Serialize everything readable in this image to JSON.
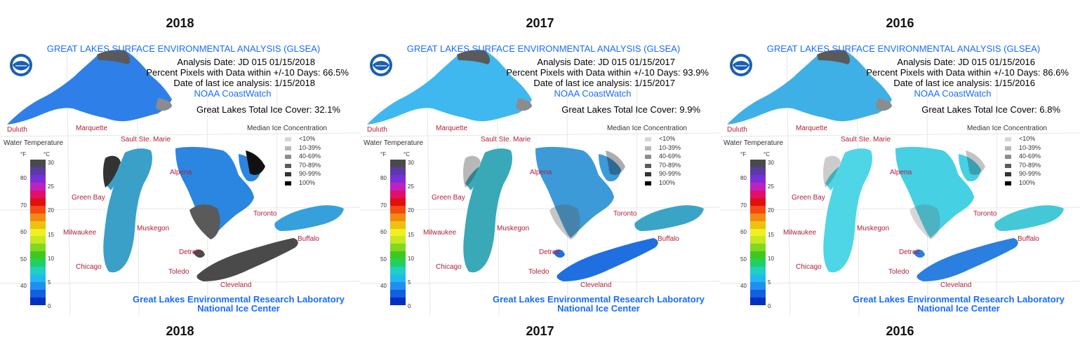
{
  "panels": [
    {
      "year_top": "2018",
      "year_bottom": "2018",
      "title": "GREAT LAKES SURFACE ENVIRONMENTAL ANALYSIS (GLSEA)",
      "analysis_date": "Analysis Date:  JD 015 01/15/2018",
      "percent_pixels": "Percent Pixels with Data within +/-10 Days:  66.5%",
      "last_ice": "Date of last ice analysis: 1/15/2018",
      "coastwatch": "NOAA CoastWatch",
      "total_ice": "Great Lakes Total Ice Cover:  32.1%",
      "ice_level": "high",
      "lake_colors": {
        "superior": "#2f7fe8",
        "michigan": "#3aa0c8",
        "huron": "#2a86e0",
        "erie": "#4a4a4a",
        "ontario": "#35a0dc"
      }
    },
    {
      "year_top": "2017",
      "year_bottom": "2017",
      "title": "GREAT LAKES SURFACE ENVIRONMENTAL ANALYSIS (GLSEA)",
      "analysis_date": "Analysis Date:  JD 015 01/15/2017",
      "percent_pixels": "Percent Pixels with Data within +/-10 Days:  93.9%",
      "last_ice": "Date of last ice analysis: 1/15/2017",
      "coastwatch": "NOAA CoastWatch",
      "total_ice": "Great Lakes Total Ice Cover:   9.9%",
      "ice_level": "low",
      "lake_colors": {
        "superior": "#3fb8f0",
        "michigan": "#39a9b8",
        "huron": "#3c9ad8",
        "erie": "#1f6fe0",
        "ontario": "#3aa4c6"
      }
    },
    {
      "year_top": "2016",
      "year_bottom": "2016",
      "title": "GREAT LAKES SURFACE ENVIRONMENTAL ANALYSIS (GLSEA)",
      "analysis_date": "Analysis Date:  JD 015 01/15/2016",
      "percent_pixels": "Percent Pixels with Data within +/-10 Days:  86.6%",
      "last_ice": "Date of last ice analysis: 1/15/2016",
      "coastwatch": "NOAA CoastWatch",
      "total_ice": "Great Lakes Total Ice Cover:   6.8%",
      "ice_level": "very-low",
      "lake_colors": {
        "superior": "#3fb0e6",
        "michigan": "#4ed6e6",
        "huron": "#46d0e4",
        "erie": "#2a7fe0",
        "ontario": "#44c8d8"
      }
    }
  ],
  "cities": {
    "duluth": "Duluth",
    "marquette": "Marquette",
    "sault": "Sault Ste. Marie",
    "alpena": "Alpena",
    "green_bay": "Green Bay",
    "toronto": "Toronto",
    "milwaukee": "Milwaukee",
    "muskegon": "Muskegon",
    "buffalo": "Buffalo",
    "detroit": "Detroit",
    "chicago": "Chicago",
    "toledo": "Toledo",
    "cleveland": "Cleveland"
  },
  "ice_legend": {
    "title": "Median Ice Concentration",
    "classes": [
      {
        "label": "<10%",
        "color": "#d8d8d8"
      },
      {
        "label": "10-39%",
        "color": "#b8b8b8"
      },
      {
        "label": "40-69%",
        "color": "#8c8c8c"
      },
      {
        "label": "70-89%",
        "color": "#5a5a5a"
      },
      {
        "label": "90-99%",
        "color": "#333333"
      },
      {
        "label": "100%",
        "color": "#000000"
      }
    ]
  },
  "water_temp": {
    "title": "Water Temperature",
    "unit_f": "°F",
    "unit_c": "°C",
    "f_ticks": [
      "80",
      "70",
      "60",
      "50",
      "40"
    ],
    "c_ticks": [
      "30",
      "25",
      "20",
      "15",
      "10",
      "5",
      "0"
    ],
    "colors": [
      "#4a4a4a",
      "#5a3aa8",
      "#7a2fd8",
      "#c020c0",
      "#e0106a",
      "#e01010",
      "#f04a10",
      "#f08a10",
      "#f0c010",
      "#f0f020",
      "#c8e820",
      "#80d820",
      "#40c820",
      "#20d060",
      "#20d0c0",
      "#20b8f0",
      "#2090f0",
      "#1060e0",
      "#0030c0"
    ]
  },
  "footer": {
    "line1": "Great Lakes Environmental Research Laboratory",
    "line2": "National Ice Center"
  }
}
